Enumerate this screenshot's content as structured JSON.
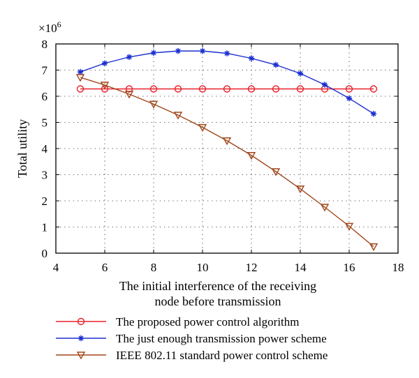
{
  "chart_data": {
    "type": "line",
    "title": "",
    "xlabel_lines": [
      "The initial interference of the receiving",
      "node before transmission"
    ],
    "ylabel": "Total utility",
    "y_multiplier_base": "×10",
    "y_multiplier_exp": "6",
    "xlim": [
      4,
      18
    ],
    "ylim": [
      0,
      8
    ],
    "xticks": [
      4,
      6,
      8,
      10,
      12,
      14,
      16,
      18
    ],
    "yticks": [
      0,
      1,
      2,
      3,
      4,
      5,
      6,
      7,
      8
    ],
    "grid": true,
    "legend_position": "bottom",
    "x": [
      5,
      6,
      7,
      8,
      9,
      10,
      11,
      12,
      13,
      14,
      15,
      16,
      17
    ],
    "series": [
      {
        "name": "The proposed power control algorithm",
        "color": "#e8202a",
        "marker": "circle",
        "values": [
          6.28,
          6.28,
          6.28,
          6.28,
          6.28,
          6.28,
          6.28,
          6.28,
          6.28,
          6.28,
          6.28,
          6.28,
          6.28
        ]
      },
      {
        "name": "The just enough transmission power scheme",
        "color": "#1a2fd0",
        "marker": "star",
        "values": [
          6.93,
          7.26,
          7.5,
          7.66,
          7.73,
          7.73,
          7.64,
          7.45,
          7.2,
          6.87,
          6.44,
          5.92,
          5.33
        ]
      },
      {
        "name": "IEEE 802.11 standard power control scheme",
        "color": "#a0461a",
        "marker": "triangle-down",
        "values": [
          6.72,
          6.43,
          6.08,
          5.7,
          5.28,
          4.81,
          4.3,
          3.74,
          3.12,
          2.46,
          1.76,
          1.03,
          0.25
        ]
      }
    ]
  }
}
